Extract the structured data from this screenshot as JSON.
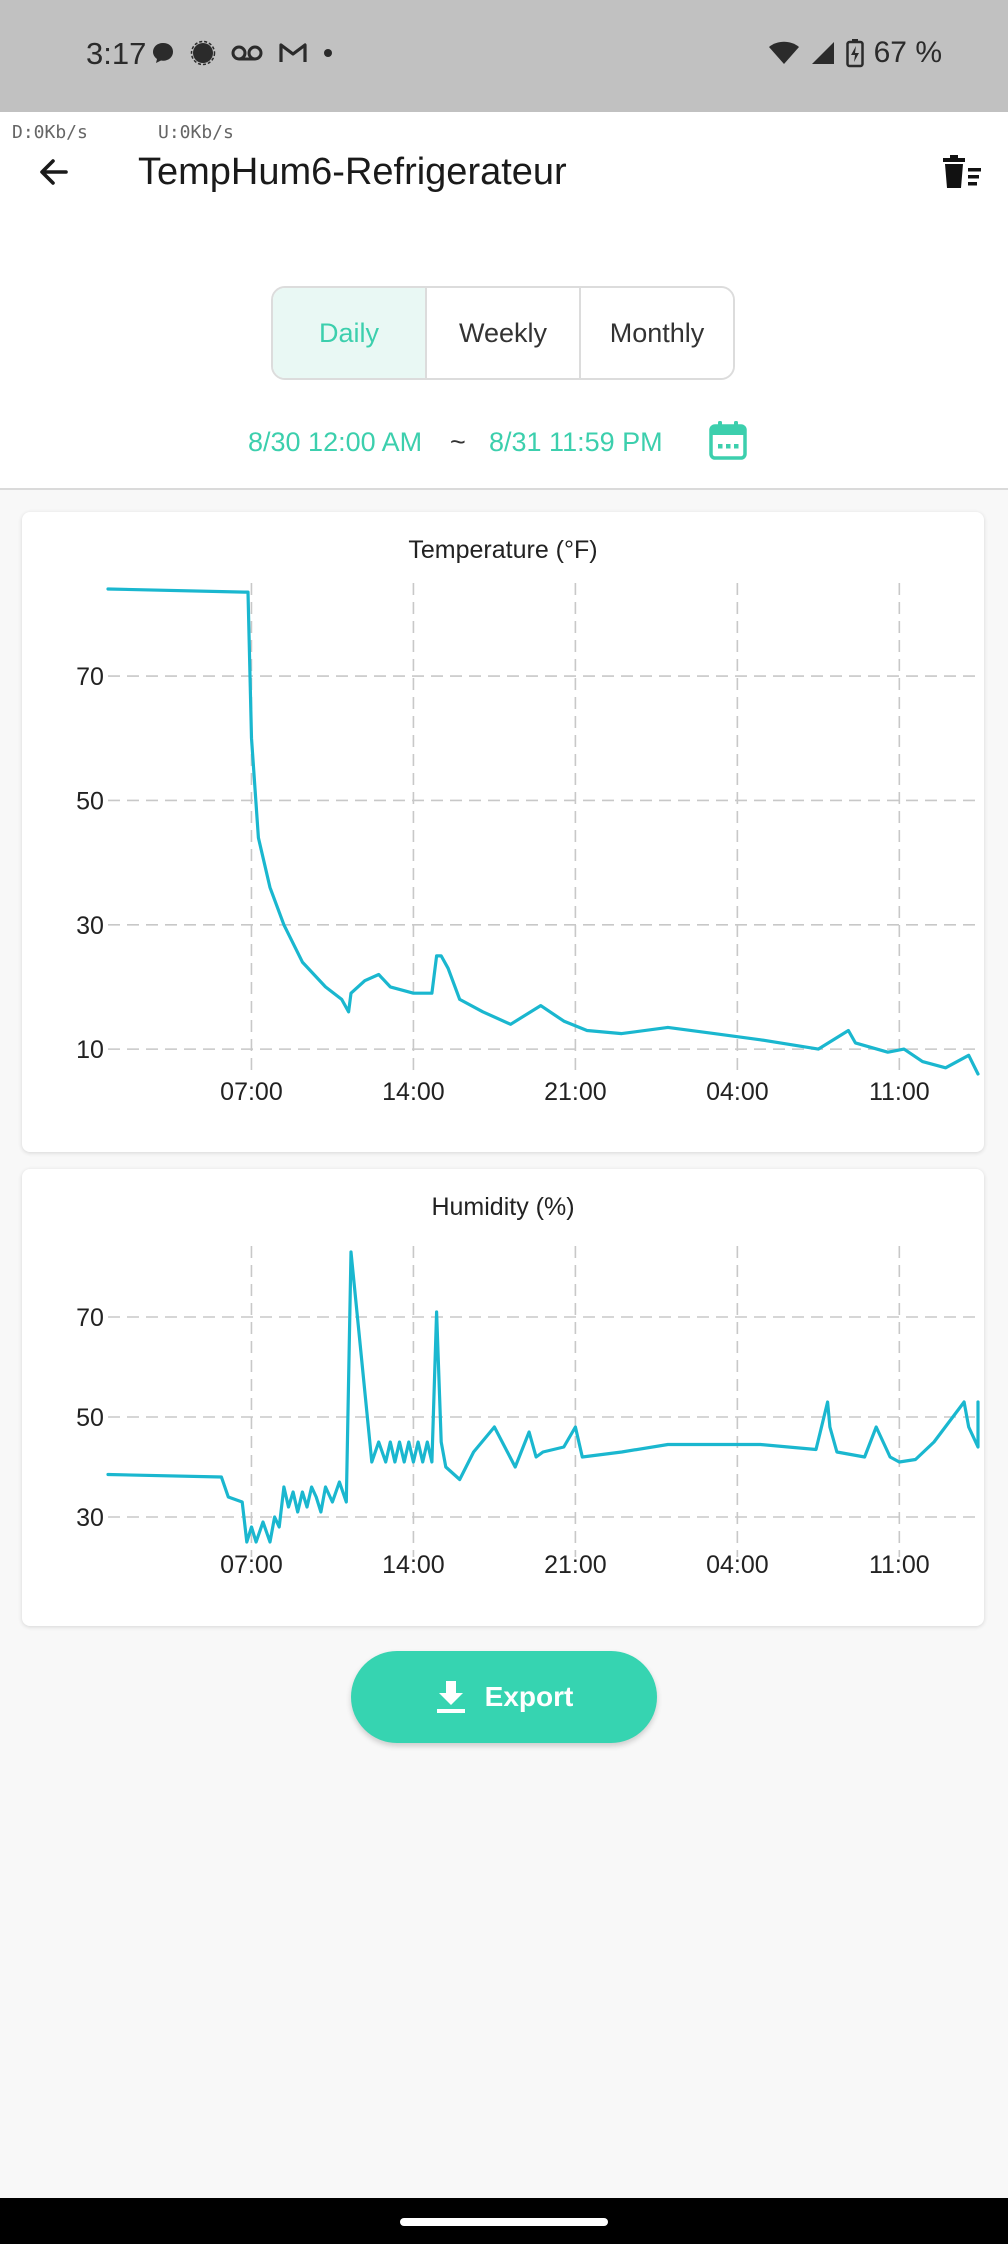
{
  "status_bar": {
    "time": "3:17",
    "battery": "67 %",
    "notification_icons": [
      "chat-bubble-icon",
      "signal-app-icon",
      "voicemail-icon",
      "gmail-icon",
      "dot-icon"
    ],
    "status_icons": [
      "wifi-icon",
      "cell-signal-icon",
      "battery-charging-icon"
    ]
  },
  "app_bar": {
    "download_speed": "D:0Kb/s",
    "upload_speed": "U:0Kb/s",
    "title": "TempHum6-Refrigerateur",
    "back_icon": "arrow-left-icon",
    "delete_icon": "trash-list-icon"
  },
  "period_tabs": [
    {
      "label": "Daily",
      "selected": true
    },
    {
      "label": "Weekly",
      "selected": false
    },
    {
      "label": "Monthly",
      "selected": false
    }
  ],
  "date_range": {
    "start": "8/30 12:00 AM",
    "separator": "~",
    "end": "8/31 11:59 PM",
    "calendar_icon": "calendar-icon"
  },
  "colors": {
    "accent": "#36d4b1",
    "accent_text": "#3ccfad",
    "line": "#1ab7cf",
    "grid": "#c8c8c8"
  },
  "chart_data": [
    {
      "type": "line",
      "title": "Temperature (°F)",
      "x_unit": "hours since 8/30 00:00",
      "xlim": [
        0.8,
        38.4
      ],
      "ylim": [
        6,
        84
      ],
      "x_ticks": [
        7,
        14,
        21,
        28,
        35
      ],
      "x_tick_labels": [
        "07:00",
        "14:00",
        "21:00",
        "04:00",
        "11:00"
      ],
      "y_ticks": [
        10,
        30,
        50,
        70
      ],
      "grid": true,
      "series": [
        {
          "x": [
            0.8,
            6.7,
            6.85,
            7.0,
            7.3,
            7.8,
            8.4,
            9.2,
            10.2,
            10.9,
            11.2,
            11.3,
            11.9,
            12.5,
            13.0,
            14.0,
            14.8,
            15.0,
            15.2,
            15.5,
            16.0,
            17.0,
            18.2,
            19.5,
            20.5,
            21.5,
            23.0,
            25.0,
            27.0,
            29.0,
            31.5,
            32.8,
            33.1,
            34.5,
            35.2,
            36.0,
            37.0,
            38.0,
            38.4
          ],
          "y": [
            84,
            83.5,
            83.5,
            60,
            44,
            36,
            30,
            24,
            20,
            18,
            16,
            19,
            21,
            22,
            20,
            19,
            19,
            25,
            25,
            23,
            18,
            16,
            14,
            17,
            14.5,
            13,
            12.5,
            13.5,
            12.5,
            11.5,
            10,
            13,
            11,
            9.5,
            10,
            8,
            7,
            9,
            6
          ]
        }
      ]
    },
    {
      "type": "line",
      "title": "Humidity (%)",
      "x_unit": "hours since 8/30 00:00",
      "xlim": [
        0.8,
        38.4
      ],
      "ylim": [
        22,
        83
      ],
      "x_ticks": [
        7,
        14,
        21,
        28,
        35
      ],
      "x_tick_labels": [
        "07:00",
        "14:00",
        "21:00",
        "04:00",
        "11:00"
      ],
      "y_ticks": [
        30,
        50,
        70
      ],
      "grid": true,
      "series": [
        {
          "x": [
            0.8,
            5.7,
            6.0,
            6.6,
            6.8,
            7.0,
            7.2,
            7.5,
            7.8,
            8.0,
            8.2,
            8.4,
            8.6,
            8.8,
            9.0,
            9.2,
            9.4,
            9.6,
            9.8,
            10.0,
            10.2,
            10.5,
            10.8,
            11.1,
            11.3,
            12.2,
            12.5,
            12.8,
            13.0,
            13.2,
            13.4,
            13.6,
            13.8,
            14.0,
            14.2,
            14.4,
            14.6,
            14.8,
            15.0,
            15.2,
            15.4,
            16.0,
            16.6,
            17.5,
            18.4,
            19.0,
            19.3,
            19.6,
            20.5,
            21.0,
            21.3,
            23.0,
            25.0,
            27.0,
            29.0,
            31.4,
            31.9,
            32.0,
            32.3,
            33.5,
            34.0,
            34.6,
            35.0,
            35.7,
            36.5,
            37.8,
            38.0,
            38.4,
            38.4
          ],
          "y": [
            38.5,
            38,
            34,
            33,
            25,
            28,
            25,
            29,
            25,
            30,
            28,
            36,
            32,
            35,
            31,
            35,
            32,
            36,
            34,
            31,
            36,
            33,
            37,
            33,
            83,
            41,
            45,
            41,
            45,
            41,
            45,
            41,
            45,
            41,
            45,
            41,
            45,
            41,
            71,
            45,
            40,
            37.5,
            43,
            48,
            40,
            47,
            42,
            43,
            44,
            48,
            42,
            43,
            44.5,
            44.5,
            44.5,
            43.5,
            53,
            48,
            43,
            42,
            48,
            42,
            41,
            41.5,
            45,
            53,
            48,
            44,
            53
          ]
        }
      ]
    }
  ],
  "export_button": {
    "label": "Export",
    "icon": "download-icon"
  }
}
